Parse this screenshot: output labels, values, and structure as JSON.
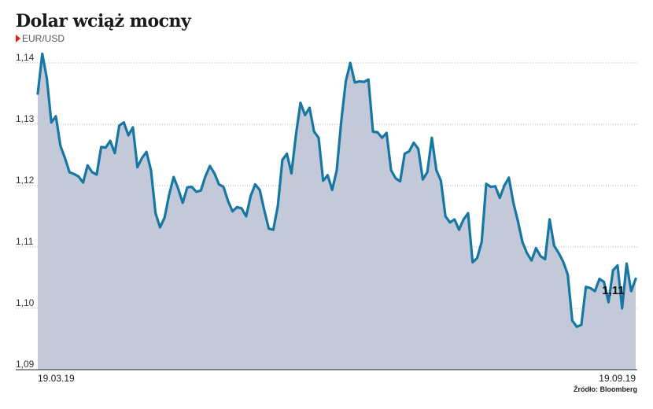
{
  "title": "Dolar wciąż mocny",
  "subtitle": "EUR/USD",
  "source": "Źródło: Bloomberg",
  "colors": {
    "line": "#1777a3",
    "area": "#c3c9d8",
    "marker": "#e0241b"
  },
  "chart_data": {
    "type": "area",
    "series_label": "EUR/USD",
    "ylim": [
      1.09,
      1.14
    ],
    "yticks": [
      "1,14",
      "1,13",
      "1,12",
      "1,11",
      "1,10",
      "1,09"
    ],
    "ytick_values": [
      1.14,
      1.13,
      1.12,
      1.11,
      1.1,
      1.09
    ],
    "x_labels": [
      "19.03.19",
      "19.09.19"
    ],
    "annotation": "1,11",
    "grid": "horizontal dotted",
    "values": [
      1.135,
      1.1415,
      1.1375,
      1.1303,
      1.1313,
      1.1265,
      1.1245,
      1.1222,
      1.1219,
      1.1215,
      1.1205,
      1.1233,
      1.1222,
      1.1218,
      1.1263,
      1.1262,
      1.1273,
      1.1253,
      1.1298,
      1.1303,
      1.1282,
      1.1295,
      1.123,
      1.1245,
      1.1255,
      1.1225,
      1.1155,
      1.1132,
      1.1148,
      1.1185,
      1.1214,
      1.1195,
      1.1172,
      1.1197,
      1.1198,
      1.119,
      1.1192,
      1.1215,
      1.1232,
      1.122,
      1.1202,
      1.1198,
      1.1175,
      1.1158,
      1.1165,
      1.1163,
      1.115,
      1.1183,
      1.1202,
      1.1193,
      1.116,
      1.113,
      1.1128,
      1.1167,
      1.1242,
      1.1252,
      1.122,
      1.1283,
      1.1335,
      1.1315,
      1.1327,
      1.1288,
      1.1278,
      1.1208,
      1.1217,
      1.1193,
      1.1225,
      1.1305,
      1.137,
      1.14,
      1.1368,
      1.137,
      1.1369,
      1.1373,
      1.1288,
      1.1287,
      1.1278,
      1.1286,
      1.1225,
      1.1212,
      1.1207,
      1.1252,
      1.1256,
      1.127,
      1.126,
      1.121,
      1.1222,
      1.1278,
      1.1225,
      1.1208,
      1.115,
      1.114,
      1.1145,
      1.1128,
      1.1145,
      1.1155,
      1.1075,
      1.1082,
      1.1108,
      1.1203,
      1.1198,
      1.1199,
      1.118,
      1.12,
      1.1213,
      1.1172,
      1.1142,
      1.1108,
      1.109,
      1.1078,
      1.1098,
      1.1085,
      1.108,
      1.1145,
      1.1102,
      1.109,
      1.1076,
      1.1055,
      1.098,
      1.097,
      1.0973,
      1.1035,
      1.1033,
      1.1028,
      1.1048,
      1.1043,
      1.101,
      1.1062,
      1.107,
      1.1,
      1.1073,
      1.1028,
      1.1048
    ]
  }
}
